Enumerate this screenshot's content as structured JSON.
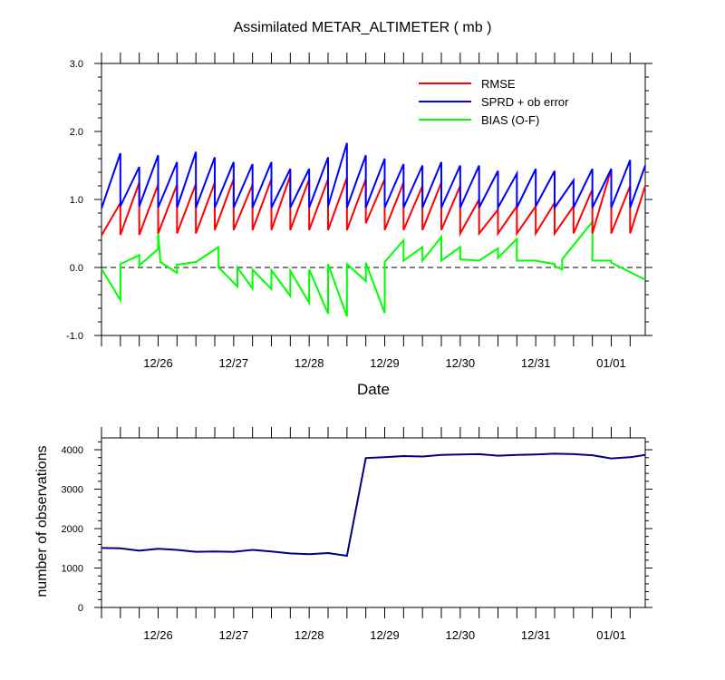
{
  "chart_data": [
    {
      "type": "line",
      "title": "Assimilated METAR_ALTIMETER ( mb )",
      "xlabel": "Date",
      "ylabel": "",
      "ylim": [
        -1.0,
        3.0
      ],
      "yticks": [
        "-1.0",
        "0.0",
        "1.0",
        "2.0",
        "3.0"
      ],
      "xlim": [
        0,
        7.2
      ],
      "xtick_labels": [
        "12/26",
        "12/27",
        "12/28",
        "12/29",
        "12/30",
        "12/31",
        "01/01"
      ],
      "xtick_values": [
        0.75,
        1.75,
        2.75,
        3.75,
        4.75,
        5.75,
        6.75
      ],
      "legend": {
        "position": "top-right",
        "entries": [
          "RMSE",
          "SPRD + ob error",
          "BIAS (O-F)"
        ]
      },
      "zero_line": true,
      "colors": {
        "RMSE": "#ff0000",
        "SPRD + ob error": "#0000ff",
        "BIAS (O-F)": "#00ff00"
      },
      "series": [
        {
          "name": "RMSE",
          "segments": [
            [
              [
                0.0,
                0.47
              ],
              [
                0.25,
                0.95
              ]
            ],
            [
              [
                0.25,
                0.48
              ],
              [
                0.5,
                1.25
              ]
            ],
            [
              [
                0.5,
                0.48
              ],
              [
                0.75,
                1.22
              ]
            ],
            [
              [
                0.75,
                0.5
              ],
              [
                1.0,
                1.22
              ]
            ],
            [
              [
                1.0,
                0.5
              ],
              [
                1.25,
                1.23
              ]
            ],
            [
              [
                1.25,
                0.5
              ],
              [
                1.5,
                1.25
              ]
            ],
            [
              [
                1.5,
                0.55
              ],
              [
                1.75,
                1.3
              ]
            ],
            [
              [
                1.75,
                0.55
              ],
              [
                2.0,
                1.22
              ]
            ],
            [
              [
                2.0,
                0.55
              ],
              [
                2.25,
                1.3
              ]
            ],
            [
              [
                2.25,
                0.55
              ],
              [
                2.5,
                1.35
              ]
            ],
            [
              [
                2.5,
                0.55
              ],
              [
                2.75,
                1.3
              ]
            ],
            [
              [
                2.75,
                0.55
              ],
              [
                3.0,
                1.3
              ]
            ],
            [
              [
                3.0,
                0.55
              ],
              [
                3.25,
                1.32
              ]
            ],
            [
              [
                3.25,
                0.55
              ],
              [
                3.5,
                1.3
              ]
            ],
            [
              [
                3.5,
                0.65
              ],
              [
                3.75,
                1.3
              ]
            ],
            [
              [
                3.75,
                0.55
              ],
              [
                4.0,
                1.25
              ]
            ],
            [
              [
                4.0,
                0.55
              ],
              [
                4.25,
                1.2
              ]
            ],
            [
              [
                4.25,
                0.55
              ],
              [
                4.5,
                1.25
              ]
            ],
            [
              [
                4.5,
                0.55
              ],
              [
                4.75,
                1.2
              ]
            ],
            [
              [
                4.75,
                0.5
              ],
              [
                5.0,
                1.0
              ]
            ],
            [
              [
                5.0,
                0.5
              ],
              [
                5.25,
                0.85
              ]
            ],
            [
              [
                5.25,
                0.5
              ],
              [
                5.5,
                0.9
              ]
            ],
            [
              [
                5.5,
                0.5
              ],
              [
                5.75,
                0.9
              ]
            ],
            [
              [
                5.75,
                0.5
              ],
              [
                6.0,
                0.95
              ]
            ],
            [
              [
                6.0,
                0.5
              ],
              [
                6.25,
                0.9
              ]
            ],
            [
              [
                6.25,
                0.5
              ],
              [
                6.5,
                1.15
              ]
            ],
            [
              [
                6.5,
                0.5
              ],
              [
                6.75,
                1.45
              ]
            ],
            [
              [
                6.75,
                0.5
              ],
              [
                7.0,
                1.2
              ]
            ],
            [
              [
                7.0,
                0.5
              ],
              [
                7.2,
                1.2
              ]
            ]
          ]
        },
        {
          "name": "SPRD + ob error",
          "segments": [
            [
              [
                0.0,
                0.87
              ],
              [
                0.25,
                1.68
              ]
            ],
            [
              [
                0.25,
                0.9
              ],
              [
                0.5,
                1.48
              ]
            ],
            [
              [
                0.5,
                0.9
              ],
              [
                0.75,
                1.65
              ]
            ],
            [
              [
                0.75,
                0.88
              ],
              [
                1.0,
                1.55
              ]
            ],
            [
              [
                1.0,
                0.88
              ],
              [
                1.25,
                1.7
              ]
            ],
            [
              [
                1.25,
                0.88
              ],
              [
                1.5,
                1.62
              ]
            ],
            [
              [
                1.5,
                0.88
              ],
              [
                1.75,
                1.55
              ]
            ],
            [
              [
                1.75,
                0.88
              ],
              [
                2.0,
                1.52
              ]
            ],
            [
              [
                2.0,
                0.88
              ],
              [
                2.25,
                1.55
              ]
            ],
            [
              [
                2.25,
                0.88
              ],
              [
                2.5,
                1.45
              ]
            ],
            [
              [
                2.5,
                0.88
              ],
              [
                2.75,
                1.45
              ]
            ],
            [
              [
                2.75,
                0.88
              ],
              [
                3.0,
                1.62
              ]
            ],
            [
              [
                3.0,
                0.9
              ],
              [
                3.25,
                1.83
              ]
            ],
            [
              [
                3.25,
                0.88
              ],
              [
                3.5,
                1.65
              ]
            ],
            [
              [
                3.5,
                0.88
              ],
              [
                3.75,
                1.6
              ]
            ],
            [
              [
                3.75,
                0.88
              ],
              [
                4.0,
                1.52
              ]
            ],
            [
              [
                4.0,
                0.88
              ],
              [
                4.25,
                1.5
              ]
            ],
            [
              [
                4.25,
                0.88
              ],
              [
                4.5,
                1.55
              ]
            ],
            [
              [
                4.5,
                0.88
              ],
              [
                4.75,
                1.5
              ]
            ],
            [
              [
                4.75,
                0.88
              ],
              [
                5.0,
                1.5
              ]
            ],
            [
              [
                5.0,
                0.88
              ],
              [
                5.25,
                1.42
              ]
            ],
            [
              [
                5.25,
                0.88
              ],
              [
                5.5,
                1.38
              ]
            ],
            [
              [
                5.5,
                0.88
              ],
              [
                5.75,
                1.45
              ]
            ],
            [
              [
                5.75,
                0.9
              ],
              [
                6.0,
                1.42
              ]
            ],
            [
              [
                6.0,
                0.88
              ],
              [
                6.25,
                1.28
              ]
            ],
            [
              [
                6.25,
                0.88
              ],
              [
                6.5,
                1.45
              ]
            ],
            [
              [
                6.5,
                0.88
              ],
              [
                6.75,
                1.45
              ]
            ],
            [
              [
                6.75,
                0.88
              ],
              [
                7.0,
                1.58
              ]
            ],
            [
              [
                7.0,
                0.88
              ],
              [
                7.2,
                1.5
              ]
            ]
          ]
        },
        {
          "name": "BIAS (O-F)",
          "segments": [
            [
              [
                0.0,
                -0.02
              ],
              [
                0.25,
                -0.48
              ]
            ],
            [
              [
                0.25,
                0.05
              ],
              [
                0.5,
                0.18
              ]
            ],
            [
              [
                0.5,
                0.03
              ],
              [
                0.75,
                0.27
              ]
            ],
            [
              [
                0.75,
                0.52
              ],
              [
                0.78,
                0.08
              ],
              [
                1.0,
                -0.08
              ]
            ],
            [
              [
                1.0,
                0.04
              ],
              [
                1.25,
                0.08
              ]
            ],
            [
              [
                1.25,
                0.08
              ],
              [
                1.55,
                0.3
              ],
              [
                1.55,
                0.02
              ]
            ],
            [
              [
                1.55,
                0.0
              ],
              [
                1.8,
                -0.28
              ]
            ],
            [
              [
                1.8,
                0.0
              ],
              [
                2.0,
                -0.31
              ]
            ],
            [
              [
                2.0,
                -0.03
              ],
              [
                2.25,
                -0.32
              ]
            ],
            [
              [
                2.25,
                -0.04
              ],
              [
                2.5,
                -0.42
              ]
            ],
            [
              [
                2.5,
                -0.05
              ],
              [
                2.75,
                -0.52
              ]
            ],
            [
              [
                2.75,
                -0.03
              ],
              [
                3.0,
                -0.68
              ]
            ],
            [
              [
                3.0,
                0.05
              ],
              [
                3.25,
                -0.72
              ]
            ],
            [
              [
                3.25,
                0.05
              ],
              [
                3.5,
                -0.2
              ]
            ],
            [
              [
                3.5,
                0.07
              ],
              [
                3.75,
                -0.67
              ]
            ],
            [
              [
                3.75,
                0.08
              ],
              [
                4.0,
                0.4
              ]
            ],
            [
              [
                4.0,
                0.1
              ],
              [
                4.25,
                0.3
              ]
            ],
            [
              [
                4.25,
                0.1
              ],
              [
                4.5,
                0.45
              ]
            ],
            [
              [
                4.5,
                0.1
              ],
              [
                4.75,
                0.3
              ]
            ],
            [
              [
                4.75,
                0.12
              ],
              [
                5.0,
                0.1
              ]
            ],
            [
              [
                5.0,
                0.1
              ],
              [
                5.25,
                0.28
              ]
            ],
            [
              [
                5.25,
                0.14
              ],
              [
                5.5,
                0.42
              ]
            ],
            [
              [
                5.5,
                0.1
              ],
              [
                5.75,
                0.1
              ]
            ],
            [
              [
                5.75,
                0.1
              ],
              [
                6.0,
                0.05
              ]
            ],
            [
              [
                6.0,
                0.02
              ],
              [
                6.1,
                -0.03
              ]
            ],
            [
              [
                6.1,
                0.12
              ],
              [
                6.5,
                0.67
              ]
            ],
            [
              [
                6.5,
                0.1
              ],
              [
                6.75,
                0.1
              ]
            ],
            [
              [
                6.75,
                0.07
              ],
              [
                7.2,
                -0.18
              ]
            ]
          ]
        }
      ]
    },
    {
      "type": "line",
      "title": "",
      "xlabel": "",
      "ylabel": "number of observations",
      "ylim": [
        0,
        4300
      ],
      "yticks": [
        "0",
        "1000",
        "2000",
        "3000",
        "4000"
      ],
      "xlim": [
        0,
        7.2
      ],
      "xtick_labels": [
        "12/26",
        "12/27",
        "12/28",
        "12/29",
        "12/30",
        "12/31",
        "01/01"
      ],
      "xtick_values": [
        0.75,
        1.75,
        2.75,
        3.75,
        4.75,
        5.75,
        6.75
      ],
      "colors": {
        "observations": "#000080"
      },
      "series": [
        {
          "points": [
            [
              0.0,
              1510
            ],
            [
              0.25,
              1500
            ],
            [
              0.5,
              1440
            ],
            [
              0.75,
              1490
            ],
            [
              1.0,
              1460
            ],
            [
              1.25,
              1410
            ],
            [
              1.5,
              1420
            ],
            [
              1.75,
              1410
            ],
            [
              2.0,
              1460
            ],
            [
              2.25,
              1420
            ],
            [
              2.5,
              1370
            ],
            [
              2.75,
              1350
            ],
            [
              3.0,
              1380
            ],
            [
              3.25,
              1310
            ],
            [
              3.5,
              3790
            ],
            [
              3.75,
              3810
            ],
            [
              4.0,
              3840
            ],
            [
              4.25,
              3830
            ],
            [
              4.5,
              3870
            ],
            [
              4.75,
              3880
            ],
            [
              5.0,
              3890
            ],
            [
              5.25,
              3850
            ],
            [
              5.5,
              3870
            ],
            [
              5.75,
              3880
            ],
            [
              6.0,
              3900
            ],
            [
              6.25,
              3890
            ],
            [
              6.5,
              3860
            ],
            [
              6.75,
              3780
            ],
            [
              7.0,
              3810
            ],
            [
              7.2,
              3870
            ]
          ]
        }
      ]
    }
  ]
}
